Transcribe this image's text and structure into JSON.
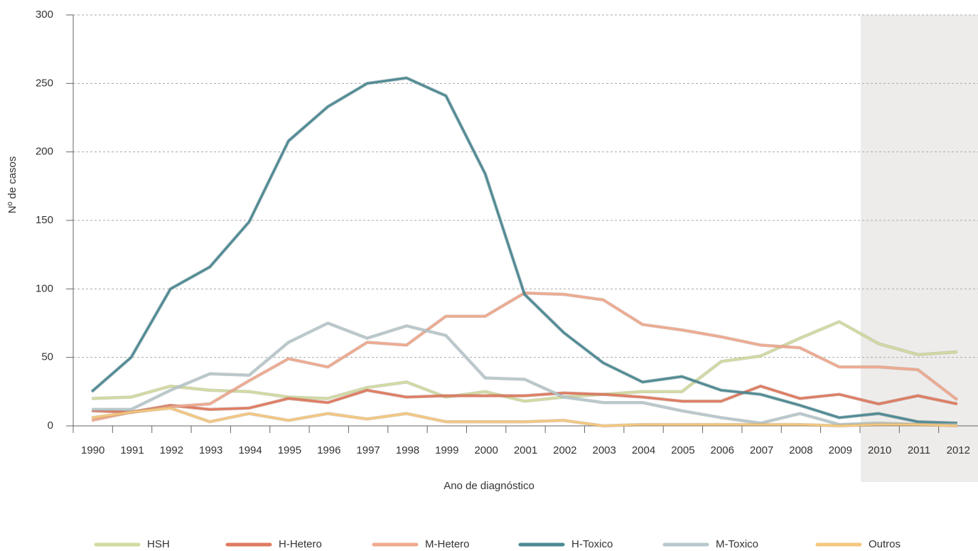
{
  "chart_data": {
    "type": "line",
    "x_label": "Ano de diagnóstico",
    "y_label": "Nº de casos",
    "categories": [
      "1990",
      "1991",
      "1992",
      "1993",
      "1994",
      "1995",
      "1996",
      "1997",
      "1998",
      "1999",
      "2000",
      "2001",
      "2002",
      "2003",
      "2004",
      "2005",
      "2006",
      "2007",
      "2008",
      "2009",
      "2010",
      "2011",
      "2012"
    ],
    "ylim": [
      0,
      300
    ],
    "yticks": [
      0,
      50,
      100,
      150,
      200,
      250,
      300
    ],
    "grid": true,
    "series": [
      {
        "name": "HSH",
        "color": "#d3dba0",
        "values": [
          20,
          21,
          29,
          26,
          25,
          21,
          20,
          28,
          32,
          21,
          25,
          18,
          21,
          23,
          25,
          25,
          47,
          51,
          64,
          76,
          60,
          52,
          54
        ]
      },
      {
        "name": "H-Hetero",
        "color": "#e07a5f",
        "values": [
          11,
          10,
          15,
          12,
          13,
          20,
          17,
          26,
          21,
          22,
          22,
          22,
          24,
          23,
          21,
          18,
          18,
          29,
          20,
          23,
          16,
          22,
          16
        ]
      },
      {
        "name": "M-Hetero",
        "color": "#f0a98d",
        "values": [
          4,
          10,
          14,
          16,
          33,
          49,
          43,
          61,
          59,
          80,
          80,
          97,
          96,
          92,
          74,
          70,
          65,
          59,
          57,
          43,
          43,
          41,
          19
        ]
      },
      {
        "name": "H-Toxico",
        "color": "#4d8a94",
        "values": [
          25,
          50,
          100,
          116,
          149,
          208,
          233,
          250,
          254,
          241,
          184,
          96,
          68,
          46,
          32,
          36,
          26,
          23,
          15,
          6,
          9,
          3,
          2
        ]
      },
      {
        "name": "M-Toxico",
        "color": "#b8c8cc",
        "values": [
          12,
          12,
          26,
          38,
          37,
          61,
          75,
          64,
          73,
          66,
          35,
          34,
          21,
          17,
          17,
          11,
          6,
          2,
          9,
          1,
          2,
          1,
          1
        ]
      },
      {
        "name": "Outros",
        "color": "#f5c77e",
        "values": [
          6,
          10,
          13,
          3,
          9,
          4,
          9,
          5,
          9,
          3,
          3,
          3,
          4,
          0,
          1,
          1,
          1,
          1,
          1,
          0,
          1,
          1,
          0
        ]
      }
    ]
  }
}
